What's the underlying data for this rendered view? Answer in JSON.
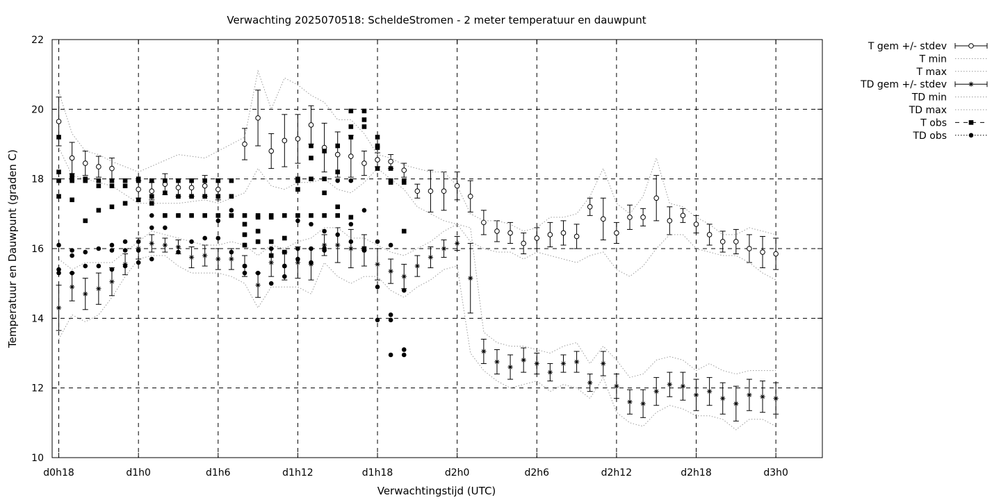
{
  "chart_data": {
    "type": "line",
    "title": "Verwachting 2025070518: ScheldeStromen - 2 meter temperatuur en dauwpunt",
    "xlabel": "Verwachtingstijd (UTC)",
    "ylabel": "Temperatuur en Dauwpunt (graden C)",
    "xlim": [
      -0.5,
      57.5
    ],
    "ylim": [
      10,
      22
    ],
    "grid": true,
    "legend_position": "top-right outside",
    "x_ticks": [
      {
        "x": 0,
        "label": "d0h18"
      },
      {
        "x": 6,
        "label": "d1h0"
      },
      {
        "x": 12,
        "label": "d1h6"
      },
      {
        "x": 18,
        "label": "d1h12"
      },
      {
        "x": 24,
        "label": "d1h18"
      },
      {
        "x": 30,
        "label": "d2h0"
      },
      {
        "x": 36,
        "label": "d2h6"
      },
      {
        "x": 42,
        "label": "d2h12"
      },
      {
        "x": 48,
        "label": "d2h18"
      },
      {
        "x": 54,
        "label": "d3h0"
      }
    ],
    "y_ticks": [
      10,
      12,
      14,
      16,
      18,
      20,
      22
    ],
    "series": [
      {
        "name": "T gem +/- stdev",
        "style": "errorbar-open-circle",
        "x": [
          0,
          1,
          2,
          3,
          4,
          6,
          7,
          8,
          9,
          10,
          11,
          12,
          14,
          15,
          16,
          17,
          18,
          19,
          20,
          21,
          22,
          23,
          24,
          25,
          26,
          27,
          28,
          29,
          30,
          31,
          32,
          33,
          34,
          35,
          36,
          37,
          38,
          39,
          40,
          41,
          42,
          43,
          44,
          45,
          46,
          47,
          48,
          49,
          50,
          51,
          52,
          53,
          54
        ],
        "mean": [
          19.65,
          18.6,
          18.45,
          18.35,
          18.3,
          17.7,
          17.65,
          17.85,
          17.75,
          17.75,
          17.8,
          17.7,
          19.0,
          19.75,
          18.8,
          19.1,
          19.15,
          19.55,
          18.9,
          18.7,
          18.65,
          18.45,
          18.55,
          18.5,
          18.25,
          17.65,
          17.65,
          17.65,
          17.8,
          17.5,
          16.75,
          16.5,
          16.45,
          16.15,
          16.3,
          16.4,
          16.45,
          16.35,
          17.2,
          16.85,
          16.45,
          16.9,
          16.9,
          17.45,
          16.8,
          16.95,
          16.7,
          16.4,
          16.2,
          16.2,
          16.0,
          15.9,
          15.85
        ],
        "stdev": [
          0.7,
          0.45,
          0.35,
          0.3,
          0.3,
          0.25,
          0.25,
          0.3,
          0.25,
          0.25,
          0.3,
          0.3,
          0.45,
          0.8,
          0.5,
          0.75,
          0.7,
          0.55,
          0.7,
          0.65,
          0.6,
          0.35,
          0.2,
          0.2,
          0.2,
          0.2,
          0.6,
          0.55,
          0.4,
          0.45,
          0.35,
          0.3,
          0.3,
          0.3,
          0.3,
          0.35,
          0.35,
          0.35,
          0.25,
          0.6,
          0.3,
          0.35,
          0.25,
          0.65,
          0.4,
          0.2,
          0.25,
          0.3,
          0.3,
          0.35,
          0.4,
          0.45,
          0.45
        ]
      },
      {
        "name": "T min",
        "style": "dotted",
        "x": [
          0,
          1,
          2,
          3,
          4,
          6,
          9,
          11,
          12,
          14,
          15,
          16,
          17,
          18,
          19,
          20,
          21,
          22,
          23,
          24,
          25,
          26,
          27,
          28,
          29,
          30,
          31,
          32,
          33,
          34,
          35,
          36,
          37,
          38,
          39,
          40,
          41,
          42,
          43,
          44,
          45,
          46,
          47,
          48,
          49,
          50,
          51,
          52,
          53,
          54
        ],
        "values": [
          18.9,
          18.1,
          18.0,
          17.9,
          17.8,
          17.3,
          17.3,
          17.4,
          17.3,
          17.6,
          18.3,
          17.8,
          17.7,
          17.9,
          17.9,
          18.0,
          17.7,
          17.6,
          17.9,
          18.3,
          18.0,
          17.7,
          17.2,
          17.0,
          16.8,
          16.7,
          16.2,
          16.0,
          15.9,
          15.9,
          15.7,
          15.9,
          15.8,
          15.7,
          15.6,
          15.8,
          15.9,
          15.4,
          15.2,
          15.5,
          16.0,
          16.4,
          16.4,
          16.0,
          15.9,
          15.8,
          15.8,
          15.6,
          15.3,
          15.1
        ]
      },
      {
        "name": "T max",
        "style": "dotted",
        "x": [
          0,
          1,
          2,
          3,
          4,
          6,
          9,
          11,
          12,
          14,
          15,
          16,
          17,
          18,
          19,
          20,
          21,
          22,
          23,
          24,
          25,
          26,
          27,
          28,
          29,
          30,
          31,
          32,
          33,
          34,
          35,
          36,
          37,
          38,
          39,
          40,
          41,
          42,
          43,
          44,
          45,
          46,
          47,
          48,
          49,
          50,
          51,
          52,
          53,
          54
        ],
        "values": [
          20.5,
          19.3,
          18.8,
          18.7,
          18.5,
          18.2,
          18.7,
          18.6,
          18.8,
          19.2,
          21.1,
          20.0,
          20.9,
          20.7,
          20.4,
          20.2,
          19.7,
          19.7,
          19.3,
          18.7,
          18.6,
          18.4,
          18.3,
          18.2,
          18.2,
          17.8,
          17.0,
          16.8,
          16.8,
          16.7,
          16.5,
          16.6,
          16.9,
          16.9,
          17.0,
          17.5,
          18.3,
          17.3,
          17.0,
          17.5,
          18.6,
          17.3,
          17.2,
          16.9,
          16.7,
          16.4,
          16.4,
          16.6,
          16.5,
          16.4
        ]
      },
      {
        "name": "TD gem +/- stdev",
        "style": "errorbar-asterisk",
        "x": [
          0,
          1,
          2,
          3,
          4,
          5,
          6,
          7,
          8,
          9,
          10,
          11,
          12,
          13,
          14,
          15,
          16,
          17,
          18,
          19,
          20,
          21,
          22,
          23,
          24,
          25,
          26,
          27,
          28,
          29,
          30,
          31,
          32,
          33,
          34,
          35,
          36,
          37,
          38,
          39,
          40,
          41,
          42,
          43,
          44,
          45,
          46,
          47,
          48,
          49,
          50,
          51,
          52,
          53,
          54
        ],
        "mean": [
          14.3,
          14.9,
          14.7,
          14.85,
          15.05,
          15.55,
          16.0,
          16.15,
          16.1,
          16.05,
          15.75,
          15.8,
          15.7,
          15.7,
          15.5,
          14.95,
          15.6,
          15.5,
          15.6,
          15.55,
          16.1,
          16.1,
          16.0,
          15.95,
          15.55,
          15.35,
          15.2,
          15.5,
          15.75,
          16.0,
          16.15,
          15.15,
          13.05,
          12.75,
          12.6,
          12.8,
          12.7,
          12.45,
          12.7,
          12.75,
          12.15,
          12.7,
          12.05,
          11.6,
          11.55,
          11.9,
          12.1,
          12.05,
          11.8,
          11.9,
          11.7,
          11.55,
          11.8,
          11.75,
          11.7
        ],
        "stdev": [
          0.65,
          0.4,
          0.45,
          0.45,
          0.4,
          0.3,
          0.3,
          0.25,
          0.2,
          0.2,
          0.3,
          0.3,
          0.3,
          0.3,
          0.3,
          0.35,
          0.4,
          0.4,
          0.45,
          0.45,
          0.3,
          0.5,
          0.55,
          0.45,
          0.45,
          0.35,
          0.35,
          0.3,
          0.3,
          0.25,
          0.2,
          1.0,
          0.35,
          0.35,
          0.35,
          0.35,
          0.3,
          0.25,
          0.25,
          0.3,
          0.25,
          0.35,
          0.35,
          0.35,
          0.4,
          0.4,
          0.35,
          0.4,
          0.45,
          0.4,
          0.45,
          0.5,
          0.45,
          0.45,
          0.45
        ]
      },
      {
        "name": "TD min",
        "style": "dotted",
        "x": [
          0,
          1,
          2,
          3,
          4,
          5,
          6,
          7,
          8,
          9,
          10,
          11,
          12,
          13,
          14,
          15,
          16,
          17,
          18,
          19,
          20,
          21,
          22,
          23,
          24,
          25,
          26,
          27,
          28,
          29,
          30,
          31,
          32,
          33,
          34,
          35,
          36,
          37,
          38,
          39,
          40,
          41,
          42,
          43,
          44,
          45,
          46,
          47,
          48,
          49,
          50,
          51,
          52,
          53,
          54
        ],
        "values": [
          13.4,
          14.1,
          13.9,
          14.1,
          14.6,
          15.2,
          15.7,
          15.8,
          15.8,
          15.5,
          15.3,
          15.3,
          15.3,
          15.2,
          15.0,
          14.3,
          14.9,
          14.9,
          14.9,
          14.7,
          15.6,
          15.2,
          15.0,
          15.2,
          15.2,
          14.8,
          14.6,
          14.9,
          15.1,
          15.4,
          15.5,
          13.0,
          12.5,
          12.2,
          12.0,
          12.1,
          12.2,
          11.9,
          12.1,
          12.0,
          11.7,
          12.3,
          11.3,
          11.0,
          10.9,
          11.3,
          11.5,
          11.4,
          11.2,
          11.2,
          11.1,
          10.8,
          11.1,
          11.1,
          10.9
        ]
      },
      {
        "name": "TD max",
        "style": "dotted",
        "x": [
          0,
          1,
          2,
          3,
          4,
          5,
          6,
          7,
          8,
          9,
          10,
          11,
          12,
          13,
          14,
          15,
          16,
          17,
          18,
          19,
          20,
          21,
          22,
          23,
          24,
          25,
          26,
          27,
          28,
          29,
          30,
          31,
          32,
          33,
          34,
          35,
          36,
          37,
          38,
          39,
          40,
          41,
          42,
          43,
          44,
          45,
          46,
          47,
          48,
          49,
          50,
          51,
          52,
          53,
          54
        ],
        "values": [
          15.7,
          15.4,
          15.6,
          15.6,
          15.6,
          15.9,
          16.2,
          16.5,
          16.4,
          16.3,
          16.2,
          16.1,
          16.1,
          16.2,
          16.1,
          15.8,
          16.1,
          16.0,
          16.2,
          16.3,
          16.6,
          16.6,
          16.3,
          16.3,
          16.1,
          15.9,
          15.8,
          16.0,
          16.2,
          16.5,
          16.7,
          16.6,
          13.6,
          13.3,
          13.2,
          13.2,
          13.1,
          13.0,
          13.2,
          13.3,
          12.7,
          13.2,
          12.8,
          12.3,
          12.4,
          12.8,
          12.9,
          12.8,
          12.5,
          12.7,
          12.5,
          12.4,
          12.5,
          12.5,
          12.5
        ]
      },
      {
        "name": "T obs",
        "style": "filled-square",
        "x": [
          0,
          0,
          0,
          0,
          1,
          1,
          1,
          1,
          2,
          2,
          2,
          3,
          3,
          3,
          4,
          4,
          4,
          5,
          5,
          5,
          6,
          6,
          6,
          7,
          7,
          7,
          8,
          8,
          8,
          9,
          9,
          9,
          10,
          10,
          10,
          11,
          11,
          11,
          12,
          12,
          12,
          13,
          13,
          13,
          14,
          14,
          14,
          14,
          15,
          15,
          15,
          15,
          16,
          16,
          16,
          16,
          17,
          17,
          17,
          18,
          18,
          18,
          18,
          19,
          19,
          19,
          19,
          20,
          20,
          20,
          20,
          21,
          21,
          21,
          21,
          22,
          22,
          22,
          22,
          23,
          23,
          23,
          23,
          24,
          24,
          24,
          24,
          25,
          25,
          25,
          26,
          26,
          26
        ],
        "values": [
          19.2,
          18.2,
          17.95,
          17.5,
          18.1,
          18.0,
          17.95,
          17.4,
          18.0,
          17.95,
          16.8,
          17.95,
          17.8,
          17.1,
          17.95,
          17.8,
          17.2,
          17.95,
          17.8,
          17.3,
          18.0,
          17.95,
          17.4,
          17.95,
          17.5,
          17.3,
          17.95,
          17.6,
          16.95,
          17.95,
          17.5,
          16.95,
          17.95,
          17.5,
          16.95,
          17.95,
          17.5,
          16.95,
          17.95,
          17.5,
          16.95,
          17.95,
          17.5,
          16.95,
          16.95,
          16.7,
          16.4,
          16.1,
          16.95,
          16.9,
          16.5,
          16.2,
          16.95,
          16.9,
          16.2,
          15.8,
          16.95,
          16.3,
          15.9,
          18.0,
          17.95,
          17.7,
          16.95,
          18.95,
          18.6,
          18.0,
          16.95,
          18.8,
          18.0,
          17.6,
          16.95,
          18.95,
          18.2,
          17.2,
          16.95,
          19.95,
          19.5,
          19.2,
          16.9,
          19.95,
          19.7,
          19.5,
          16.0,
          19.2,
          18.95,
          18.9,
          18.3,
          17.95,
          17.9,
          18.3,
          17.95,
          17.9,
          16.5
        ]
      },
      {
        "name": "TD obs",
        "style": "filled-circle",
        "x": [
          0,
          0,
          0,
          1,
          1,
          1,
          2,
          2,
          3,
          3,
          4,
          4,
          4,
          5,
          5,
          5,
          6,
          6,
          6,
          7,
          7,
          7,
          8,
          8,
          9,
          9,
          10,
          10,
          11,
          11,
          12,
          12,
          12,
          13,
          13,
          13,
          14,
          14,
          14,
          14,
          15,
          15,
          15,
          16,
          16,
          17,
          17,
          18,
          18,
          18,
          19,
          19,
          19,
          20,
          20,
          20,
          21,
          21,
          22,
          22,
          22,
          23,
          23,
          24,
          24,
          24,
          25,
          25,
          25,
          25,
          26,
          26,
          26
        ],
        "values": [
          16.1,
          15.4,
          15.3,
          15.95,
          15.8,
          15.3,
          15.9,
          15.5,
          16.0,
          15.5,
          16.1,
          15.95,
          15.4,
          16.2,
          15.95,
          15.5,
          16.2,
          15.95,
          15.6,
          16.95,
          16.6,
          15.7,
          16.95,
          16.6,
          16.95,
          15.9,
          16.95,
          16.2,
          16.95,
          16.3,
          16.95,
          16.3,
          16.8,
          17.1,
          16.95,
          15.9,
          16.4,
          16.1,
          15.5,
          15.3,
          16.5,
          16.2,
          15.3,
          16.0,
          15.0,
          15.5,
          15.2,
          16.8,
          16.0,
          15.7,
          16.7,
          16.0,
          15.6,
          16.5,
          15.95,
          16.0,
          16.4,
          17.95,
          17.95,
          16.7,
          16.2,
          17.1,
          15.95,
          16.2,
          14.9,
          13.95,
          16.1,
          14.1,
          13.95,
          12.95,
          14.8,
          13.1,
          12.95
        ]
      }
    ]
  }
}
